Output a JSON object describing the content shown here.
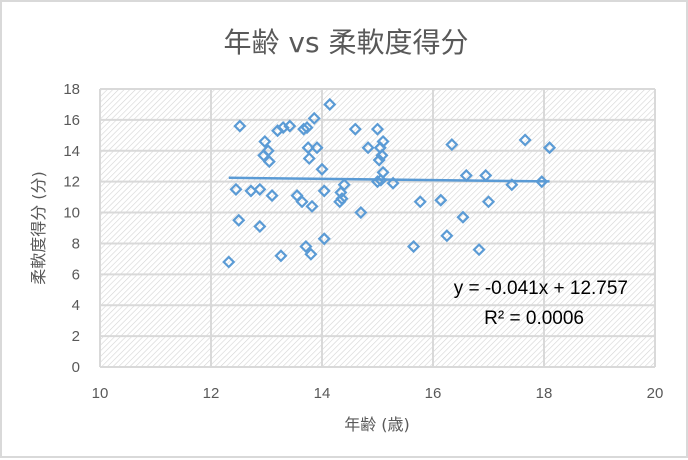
{
  "chart_data": {
    "type": "scatter",
    "title": "年齢 vs 柔軟度得分",
    "xlabel": "年齢 (歳)",
    "ylabel": "柔軟度得分 (分)",
    "xlim": [
      10,
      20
    ],
    "ylim": [
      0,
      18
    ],
    "xticks": [
      10,
      12,
      14,
      16,
      18,
      20
    ],
    "yticks": [
      0,
      2,
      4,
      6,
      8,
      10,
      12,
      14,
      16,
      18
    ],
    "grid": true,
    "marker": "diamond-open",
    "color": "#5b9bd5",
    "points": [
      [
        12.32,
        6.8
      ],
      [
        12.45,
        11.5
      ],
      [
        12.52,
        15.6
      ],
      [
        12.5,
        9.5
      ],
      [
        12.72,
        11.4
      ],
      [
        12.88,
        11.5
      ],
      [
        12.88,
        9.1
      ],
      [
        12.95,
        13.7
      ],
      [
        12.97,
        14.6
      ],
      [
        13.03,
        14.0
      ],
      [
        13.05,
        13.3
      ],
      [
        13.1,
        11.1
      ],
      [
        13.2,
        15.3
      ],
      [
        13.26,
        7.2
      ],
      [
        13.3,
        15.5
      ],
      [
        13.42,
        15.6
      ],
      [
        13.55,
        11.1
      ],
      [
        13.64,
        10.7
      ],
      [
        13.67,
        15.4
      ],
      [
        13.73,
        15.5
      ],
      [
        13.71,
        7.8
      ],
      [
        13.77,
        13.5
      ],
      [
        13.75,
        14.2
      ],
      [
        13.82,
        10.4
      ],
      [
        13.8,
        7.3
      ],
      [
        13.86,
        16.1
      ],
      [
        13.91,
        14.2
      ],
      [
        14.0,
        12.8
      ],
      [
        14.04,
        11.4
      ],
      [
        14.04,
        8.3
      ],
      [
        14.14,
        17.0
      ],
      [
        14.32,
        10.7
      ],
      [
        14.34,
        11.3
      ],
      [
        14.4,
        11.8
      ],
      [
        14.36,
        10.9
      ],
      [
        14.6,
        15.4
      ],
      [
        14.7,
        10.0
      ],
      [
        14.83,
        14.2
      ],
      [
        15.0,
        15.4
      ],
      [
        15.0,
        12.0
      ],
      [
        15.03,
        13.4
      ],
      [
        15.05,
        14.2
      ],
      [
        15.08,
        13.7
      ],
      [
        15.1,
        12.6
      ],
      [
        15.06,
        12.1
      ],
      [
        15.1,
        14.6
      ],
      [
        15.28,
        11.9
      ],
      [
        15.65,
        7.8
      ],
      [
        15.77,
        10.7
      ],
      [
        16.14,
        10.8
      ],
      [
        16.25,
        8.5
      ],
      [
        16.34,
        14.4
      ],
      [
        16.54,
        9.7
      ],
      [
        16.6,
        12.4
      ],
      [
        16.83,
        7.6
      ],
      [
        16.95,
        12.4
      ],
      [
        17.0,
        10.7
      ],
      [
        17.42,
        11.8
      ],
      [
        17.66,
        14.7
      ],
      [
        17.96,
        12.0
      ],
      [
        18.1,
        14.2
      ]
    ],
    "trendline": {
      "type": "linear",
      "slope": -0.041,
      "intercept": 12.757,
      "equation": "y = -0.041x + 12.757",
      "r_squared": "R² = 0.0006"
    }
  }
}
